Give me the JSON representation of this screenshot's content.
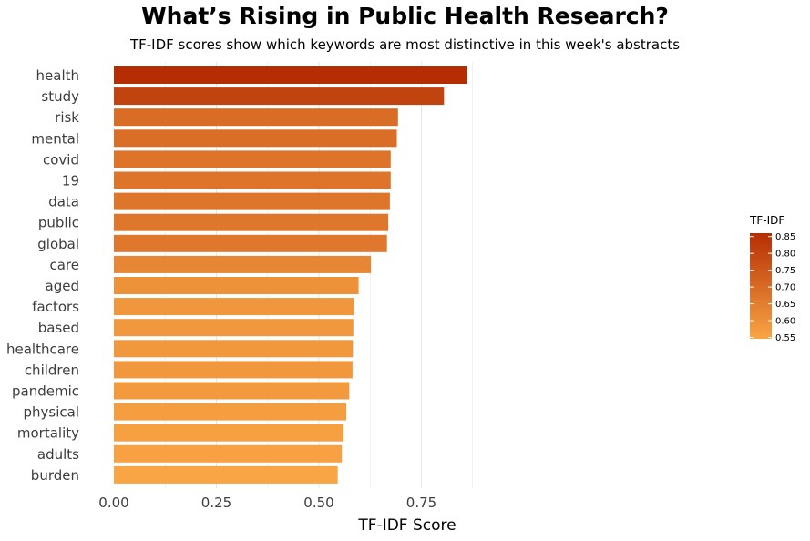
{
  "chart_data": {
    "type": "bar",
    "orientation": "horizontal",
    "title": "What’s Rising in Public Health Research?",
    "subtitle": "TF-IDF scores show which keywords are most distinctive in this week's abstracts",
    "xlabel": "TF-IDF Score",
    "ylabel": "",
    "xlim": [
      0,
      0.9
    ],
    "xticks": [
      0,
      0.25,
      0.5,
      0.75
    ],
    "xtick_labels": [
      "0.00",
      "0.25",
      "0.50",
      "0.75"
    ],
    "grid": true,
    "categories": [
      "health",
      "study",
      "risk",
      "mental",
      "covid",
      "19",
      "data",
      "public",
      "global",
      "care",
      "aged",
      "factors",
      "based",
      "healthcare",
      "children",
      "pandemic",
      "physical",
      "mortality",
      "adults",
      "burden"
    ],
    "values": [
      0.86,
      0.805,
      0.693,
      0.69,
      0.675,
      0.675,
      0.673,
      0.669,
      0.666,
      0.627,
      0.597,
      0.586,
      0.584,
      0.583,
      0.582,
      0.574,
      0.567,
      0.56,
      0.556,
      0.546
    ],
    "legend": {
      "title": "TF-IDF",
      "placement": "right",
      "ticks": [
        0.85,
        0.8,
        0.75,
        0.7,
        0.65,
        0.6,
        0.55
      ],
      "tick_labels": [
        "0.85",
        "0.80",
        "0.75",
        "0.70",
        "0.65",
        "0.60",
        "0.55"
      ],
      "range": [
        0.546,
        0.86
      ]
    },
    "colors": {
      "low": "#f9a545",
      "high": "#b52e03",
      "grid": "#e6e6e6"
    }
  }
}
